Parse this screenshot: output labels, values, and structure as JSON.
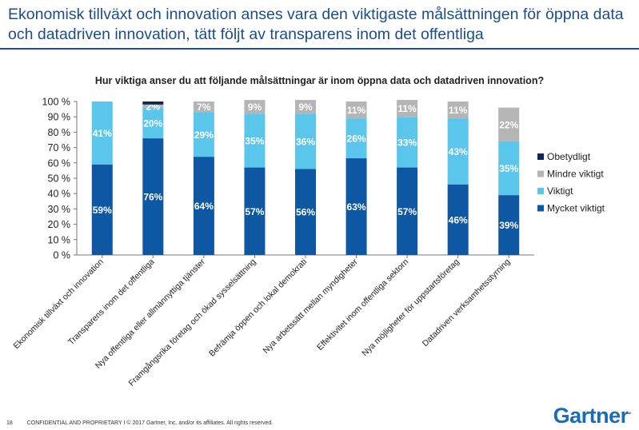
{
  "slide": {
    "title_line1": "Ekonomisk tillväxt och innovation anses vara den viktigaste målsättningen för öppna data",
    "title_line2": "och datadriven innovation, tätt följt av transparens inom det offentliga"
  },
  "footer": {
    "page_number": "18",
    "confidential": "CONFIDENTIAL AND PROPRIETARY I © 2017 Gartner, Inc. and/or its affiliates. All rights reserved."
  },
  "logo": {
    "text": "Gartner",
    "dot": "."
  },
  "chart_data": {
    "type": "bar",
    "stacked": true,
    "title": "Hur viktiga anser du att följande målsättningar är inom öppna data och datadriven innovation?",
    "categories": [
      "Ekonomisk tillväxt och innovation",
      "Transparens inom det offentliga",
      "Nya offentliga eller allmännyttiga tjänster",
      "Framgångsrika företag och ökad sysselsättning",
      "Befrämja öppen och lokal demokrati",
      "Nya arbetssätt mellan myndigheter",
      "Effektivitet inom offentliga sektorn",
      "Nya möjligheter för uppstartsföretag",
      "Datadriven verksamhetsstyrning"
    ],
    "series": [
      {
        "name": "Mycket viktigt",
        "color": "#0d57a3",
        "values": [
          59,
          76,
          64,
          57,
          56,
          63,
          57,
          46,
          39
        ]
      },
      {
        "name": "Viktigt",
        "color": "#5bc6ec",
        "values": [
          41,
          20,
          29,
          35,
          36,
          26,
          33,
          43,
          35
        ]
      },
      {
        "name": "Mindre viktigt",
        "color": "#b5b5b5",
        "values": [
          0,
          2,
          7,
          9,
          9,
          11,
          11,
          11,
          22
        ]
      },
      {
        "name": "Obetydligt",
        "color": "#0b2a52",
        "values": [
          0,
          2,
          0,
          0,
          0,
          0,
          0,
          0,
          0
        ]
      }
    ],
    "labels": [
      [
        "59%",
        "76%",
        "64%",
        "57%",
        "56%",
        "63%",
        "57%",
        "46%",
        "39%"
      ],
      [
        "41%",
        "20%",
        "29%",
        "35%",
        "36%",
        "26%",
        "33%",
        "43%",
        "35%"
      ],
      [
        "",
        "2%",
        "7%",
        "9%",
        "9%",
        "11%",
        "11%",
        "11%",
        "22%"
      ],
      [
        "",
        "",
        "",
        "",
        "",
        "",
        "",
        "",
        ""
      ]
    ],
    "ylim": [
      0,
      100
    ],
    "yticks": [
      "0 %",
      "10 %",
      "20 %",
      "30 %",
      "40 %",
      "50 %",
      "60 %",
      "70 %",
      "80 %",
      "90 %",
      "100 %"
    ],
    "legend_position": "right",
    "legend_order": [
      "Obetydligt",
      "Mindre viktigt",
      "Viktigt",
      "Mycket viktigt"
    ],
    "grid": false
  }
}
